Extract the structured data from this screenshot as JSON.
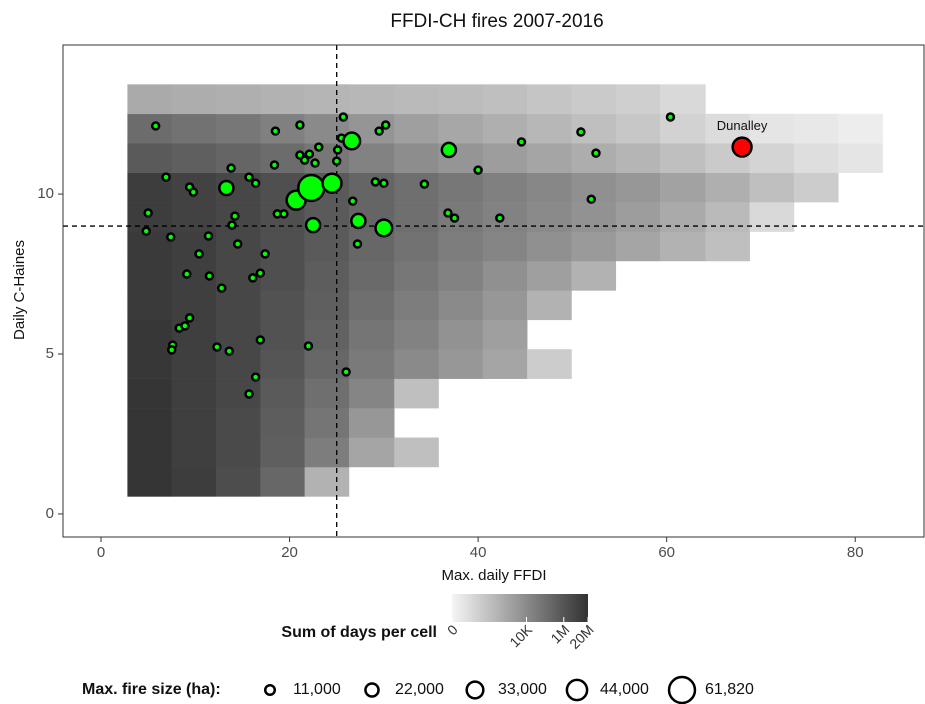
{
  "chart_data": {
    "type": "heatmap-scatter",
    "title": "FFDI-CH fires 2007-2016",
    "x_label": "Max. daily FFDI",
    "y_label": "Daily C-Haines",
    "xlim": [
      -4.03,
      87.4
    ],
    "ylim": [
      -0.72,
      14.66
    ],
    "xticks": [
      0,
      20,
      40,
      60,
      80
    ],
    "yticks": [
      0,
      5,
      10
    ],
    "vlines": [
      25
    ],
    "hlines": [
      9
    ],
    "heatmap": {
      "legend_title": "Sum of days per cell",
      "color_lim": [
        0,
        20000000
      ],
      "color_ticks": [
        0,
        {
          "value": 10000,
          "label": "10K"
        },
        {
          "value": 1000000,
          "label": "1M"
        },
        {
          "value": 20000000,
          "label": "20M"
        }
      ],
      "x_edges": [
        2.8,
        7.5,
        12.2,
        16.9,
        21.6,
        26.3,
        31.1,
        35.8,
        40.5,
        45.2,
        49.9,
        54.6,
        59.3,
        64.1,
        68.8,
        73.5,
        78.2,
        82.9
      ],
      "y_edges": [
        0.55,
        1.47,
        2.39,
        3.31,
        4.23,
        5.15,
        6.07,
        6.99,
        7.91,
        8.83,
        9.75,
        10.67,
        11.59,
        12.51,
        13.43
      ],
      "values": [
        [
          16000000,
          8000000,
          2000000,
          200000,
          320
        ],
        [
          16000000,
          6300000,
          2500000,
          400000,
          32000,
          1000,
          100
        ],
        [
          16000000,
          6300000,
          2500000,
          500000,
          63000,
          3200
        ],
        [
          16000000,
          6300000,
          3200000,
          630000,
          100000,
          16000,
          100
        ],
        [
          13000000,
          6300000,
          3200000,
          1000000,
          200000,
          40000,
          10000,
          3200,
          1000,
          32
        ],
        [
          13000000,
          6300000,
          3200000,
          1300000,
          320000,
          63000,
          20000,
          5000,
          1600
        ],
        [
          10000000,
          6300000,
          3200000,
          1300000,
          400000,
          100000,
          32000,
          10000,
          3200,
          320
        ],
        [
          10000000,
          6300000,
          3200000,
          1600000,
          500000,
          160000,
          50000,
          20000,
          6300,
          1600,
          320
        ],
        [
          10000000,
          6300000,
          3200000,
          1600000,
          630000,
          200000,
          80000,
          32000,
          16000,
          6300,
          2500,
          1000,
          320,
          100
        ],
        [
          8000000,
          5000000,
          3200000,
          1600000,
          630000,
          250000,
          100000,
          40000,
          20000,
          10000,
          5000,
          2000,
          630,
          160,
          10
        ],
        [
          8000000,
          5000000,
          3200000,
          1600000,
          630000,
          250000,
          100000,
          50000,
          25000,
          13000,
          6300,
          3200,
          1300,
          400,
          100,
          32
        ],
        [
          630000,
          400000,
          250000,
          130000,
          50000,
          20000,
          8000,
          4000,
          2000,
          1000,
          500,
          250,
          100,
          40,
          16,
          6,
          3
        ],
        [
          130000,
          80000,
          50000,
          25000,
          10000,
          4000,
          1600,
          800,
          400,
          200,
          100,
          50,
          20,
          8,
          3,
          2,
          1
        ],
        [
          630,
          500,
          400,
          320,
          250,
          200,
          160,
          130,
          100,
          63,
          40,
          25,
          10
        ]
      ]
    },
    "points": {
      "color": "#00ff00",
      "size_legend_title": "Max. fire size (ha):",
      "size_legend": [
        {
          "value": 11000,
          "label": "11,000"
        },
        {
          "value": 22000,
          "label": "22,000"
        },
        {
          "value": 33000,
          "label": "33,000"
        },
        {
          "value": 44000,
          "label": "44,000"
        },
        {
          "value": 61820,
          "label": "61,820"
        }
      ],
      "x": [
        5.8,
        6.9,
        5.0,
        4.8,
        7.4,
        9.4,
        9.8,
        11.4,
        10.4,
        9.1,
        11.5,
        12.8,
        8.3,
        8.9,
        9.4,
        7.6,
        7.5,
        12.3,
        13.6,
        13.3,
        13.8,
        13.9,
        14.2,
        14.5,
        15.7,
        16.4,
        17.4,
        16.9,
        16.1,
        16.9,
        16.4,
        15.7,
        18.5,
        18.4,
        18.7,
        19.4,
        20.7,
        21.1,
        21.1,
        21.6,
        22.1,
        22.3,
        22.7,
        23.1,
        22.5,
        22.0,
        24.5,
        25.0,
        25.1,
        25.7,
        25.5,
        26.6,
        26.7,
        27.3,
        27.2,
        26.0,
        29.1,
        30.0,
        29.5,
        30.2,
        30.0,
        34.3,
        36.9,
        36.8,
        37.5,
        40.0,
        42.3,
        44.6,
        50.9,
        52.5,
        52.0,
        60.4,
        68.0
      ],
      "y": [
        12.13,
        10.53,
        9.41,
        8.84,
        8.66,
        10.22,
        10.06,
        8.69,
        8.13,
        7.5,
        7.44,
        7.06,
        5.81,
        5.88,
        6.13,
        5.28,
        5.13,
        5.22,
        5.09,
        10.19,
        10.81,
        9.03,
        9.31,
        8.44,
        10.53,
        10.34,
        8.13,
        7.53,
        7.38,
        5.44,
        4.28,
        3.75,
        11.97,
        10.91,
        9.38,
        9.38,
        9.81,
        12.16,
        11.22,
        11.06,
        11.25,
        10.19,
        10.97,
        11.47,
        9.03,
        5.25,
        10.34,
        11.03,
        11.38,
        12.41,
        11.75,
        11.66,
        9.78,
        9.16,
        8.44,
        4.44,
        10.38,
        10.34,
        11.97,
        12.16,
        8.94,
        10.31,
        11.38,
        9.41,
        9.25,
        10.75,
        9.25,
        11.63,
        11.94,
        11.28,
        9.84,
        12.41,
        11.47
      ],
      "size": [
        3000,
        3000,
        3000,
        3000,
        3000,
        3000,
        3000,
        3000,
        3000,
        3000,
        3000,
        3000,
        3000,
        3000,
        3000,
        3000,
        3000,
        3000,
        3000,
        25000,
        3000,
        3000,
        3000,
        3000,
        3000,
        3000,
        3000,
        3000,
        3000,
        3000,
        3000,
        3000,
        3000,
        3000,
        3000,
        3000,
        40000,
        3000,
        3000,
        3000,
        3000,
        61820,
        3000,
        3000,
        25000,
        3000,
        40000,
        3000,
        3000,
        3000,
        3000,
        33000,
        3000,
        25000,
        3000,
        3000,
        3000,
        3000,
        3000,
        3000,
        33000,
        3000,
        25000,
        3000,
        3000,
        3000,
        3000,
        3000,
        3000,
        3000,
        3000,
        3000,
        40000
      ],
      "highlight": {
        "index": 72,
        "color": "#ff0000",
        "label": "Dunalley"
      }
    }
  }
}
